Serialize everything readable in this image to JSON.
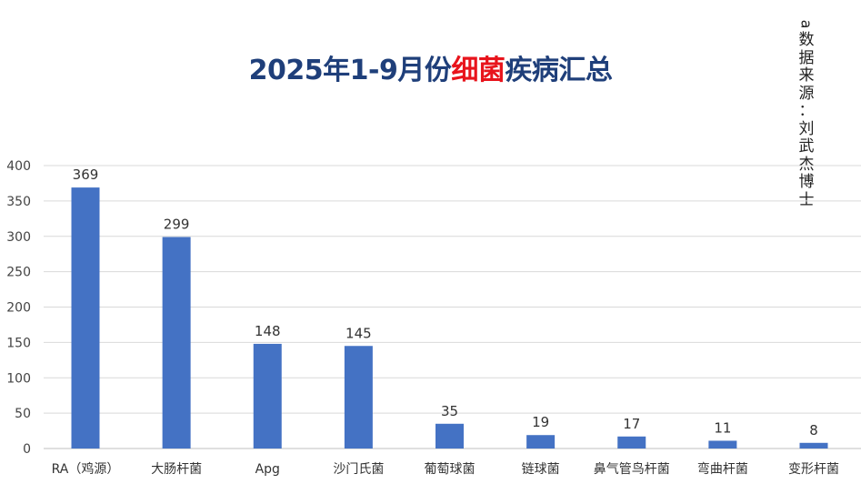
{
  "title": {
    "prefix": "2025年1-9月份",
    "highlight": "细菌",
    "suffix": "疾病汇总",
    "highlight_color": "#e8141c",
    "color": "#1f3f7a"
  },
  "source_note": {
    "rotated_char": "a",
    "chars": [
      "数",
      "据",
      "来",
      "源",
      "：",
      "刘",
      "武",
      "杰",
      "博",
      "士"
    ]
  },
  "chart_data": {
    "type": "bar",
    "categories": [
      "RA（鸡源）",
      "大肠杆菌",
      "Apg",
      "沙门氏菌",
      "葡萄球菌",
      "链球菌",
      "鼻气管鸟杆菌",
      "弯曲杆菌",
      "变形杆菌"
    ],
    "values": [
      369,
      299,
      148,
      145,
      35,
      19,
      17,
      11,
      8
    ],
    "data_labels": [
      "369",
      "299",
      "148",
      "145",
      "35",
      "19",
      "17",
      "11",
      "8"
    ],
    "title": "2025年1-9月份细菌疾病汇总",
    "xlabel": "",
    "ylabel": "",
    "ylim": [
      0,
      400
    ],
    "yticks": [
      0,
      50,
      100,
      150,
      200,
      250,
      300,
      350,
      400
    ],
    "grid": true,
    "legend": "none",
    "bar_color": "#4472c4",
    "grid_color": "#d9d9d9"
  }
}
